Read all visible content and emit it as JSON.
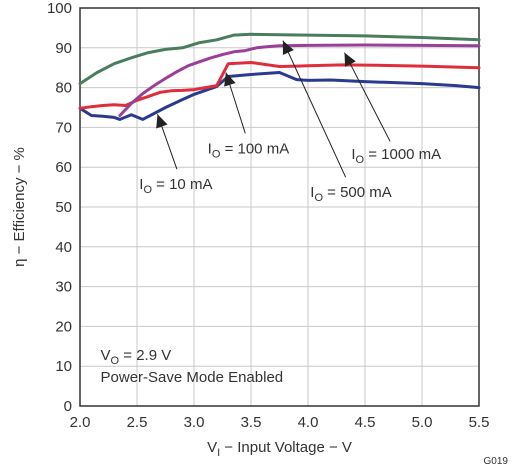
{
  "chart_data": {
    "type": "line",
    "xlabel": {
      "main": "V",
      "sub": "I",
      "rest": " − Input Voltage − V"
    },
    "ylabel": "η − Efficiency − %",
    "xlim": [
      2.0,
      5.5
    ],
    "ylim": [
      0,
      100
    ],
    "xticks": [
      "2.0",
      "2.5",
      "3.0",
      "3.5",
      "4.0",
      "4.5",
      "5.0",
      "5.5"
    ],
    "yticks": [
      "0",
      "10",
      "20",
      "30",
      "40",
      "50",
      "60",
      "70",
      "80",
      "90",
      "100"
    ],
    "grid": true,
    "series": [
      {
        "name": "IO = 10 mA",
        "label": {
          "main": "I",
          "sub": "O",
          "rest": " = 10 mA"
        },
        "color": "#2a3b8f",
        "x": [
          2.0,
          2.1,
          2.2,
          2.3,
          2.35,
          2.45,
          2.55,
          2.65,
          2.75,
          2.9,
          3.0,
          3.1,
          3.2,
          3.3,
          3.5,
          3.75,
          3.9,
          4.0,
          4.2,
          4.5,
          5.0,
          5.3,
          5.5
        ],
        "y": [
          74.8,
          73.0,
          72.8,
          72.5,
          72.0,
          73.2,
          72.0,
          73.5,
          75.0,
          77.0,
          78.3,
          79.3,
          80.3,
          82.8,
          83.3,
          83.8,
          82.0,
          81.8,
          81.9,
          81.5,
          81.0,
          80.5,
          80.0
        ]
      },
      {
        "name": "IO = 100 mA",
        "label": {
          "main": "I",
          "sub": "O",
          "rest": " = 100 mA"
        },
        "color": "#e02d3b",
        "x": [
          2.0,
          2.1,
          2.2,
          2.3,
          2.4,
          2.5,
          2.6,
          2.7,
          2.8,
          2.9,
          3.0,
          3.1,
          3.2,
          3.3,
          3.5,
          3.75,
          3.9,
          4.0,
          4.3,
          4.6,
          5.0,
          5.5
        ],
        "y": [
          74.8,
          75.2,
          75.5,
          75.7,
          75.5,
          76.8,
          77.8,
          78.8,
          79.2,
          79.3,
          79.5,
          80.0,
          80.5,
          86.0,
          86.3,
          85.3,
          85.4,
          85.5,
          85.7,
          85.6,
          85.4,
          85.0
        ]
      },
      {
        "name": "IO = 500 mA",
        "label": {
          "main": "I",
          "sub": "O",
          "rest": " = 500 mA"
        },
        "color": "#4a7d5e",
        "x": [
          2.0,
          2.15,
          2.3,
          2.45,
          2.6,
          2.75,
          2.9,
          3.05,
          3.2,
          3.35,
          3.5,
          3.75,
          4.0,
          4.5,
          5.0,
          5.5
        ],
        "y": [
          81.0,
          83.8,
          86.0,
          87.5,
          88.8,
          89.6,
          90.0,
          91.3,
          92.0,
          93.2,
          93.4,
          93.3,
          93.2,
          93.0,
          92.6,
          92.0
        ]
      },
      {
        "name": "IO = 1000 mA",
        "label": {
          "main": "I",
          "sub": "O",
          "rest": " = 1000 mA"
        },
        "color": "#9a3f98",
        "x": [
          2.35,
          2.45,
          2.55,
          2.65,
          2.75,
          2.85,
          2.95,
          3.05,
          3.15,
          3.25,
          3.35,
          3.45,
          3.55,
          3.65,
          3.75,
          4.0,
          4.5,
          5.0,
          5.5
        ],
        "y": [
          73.0,
          76.0,
          78.5,
          80.5,
          82.3,
          84.0,
          85.5,
          86.5,
          87.5,
          88.3,
          89.0,
          89.3,
          90.0,
          90.3,
          90.5,
          90.6,
          90.7,
          90.6,
          90.5
        ]
      }
    ],
    "annotations": [
      {
        "target": 0,
        "main": "I",
        "sub": "O",
        "rest": " = 10 mA",
        "tx": 2.52,
        "ty": 54.5,
        "ax": 2.68,
        "ay": 73.3,
        "lx0": 2.85,
        "ly0": 59.5
      },
      {
        "target": 1,
        "main": "I",
        "sub": "O",
        "rest": " = 100 mA",
        "tx": 3.12,
        "ty": 63.5,
        "ax": 3.28,
        "ay": 83.8,
        "lx0": 3.45,
        "ly0": 68.5
      },
      {
        "target": 2,
        "main": "I",
        "sub": "O",
        "rest": " = 500 mA",
        "tx": 4.02,
        "ty": 52.5,
        "ax": 3.78,
        "ay": 91.8,
        "lx0": 4.33,
        "ly0": 57.5
      },
      {
        "target": 3,
        "main": "I",
        "sub": "O",
        "rest": " = 1000 mA",
        "tx": 4.38,
        "ty": 62.0,
        "ax": 4.32,
        "ay": 88.8,
        "lx0": 4.72,
        "ly0": 66.5
      }
    ],
    "textbox": {
      "line1": {
        "main": "V",
        "sub": "O",
        "rest": " = 2.9 V"
      },
      "line2": "Power-Save Mode Enabled"
    },
    "code": "G019"
  }
}
